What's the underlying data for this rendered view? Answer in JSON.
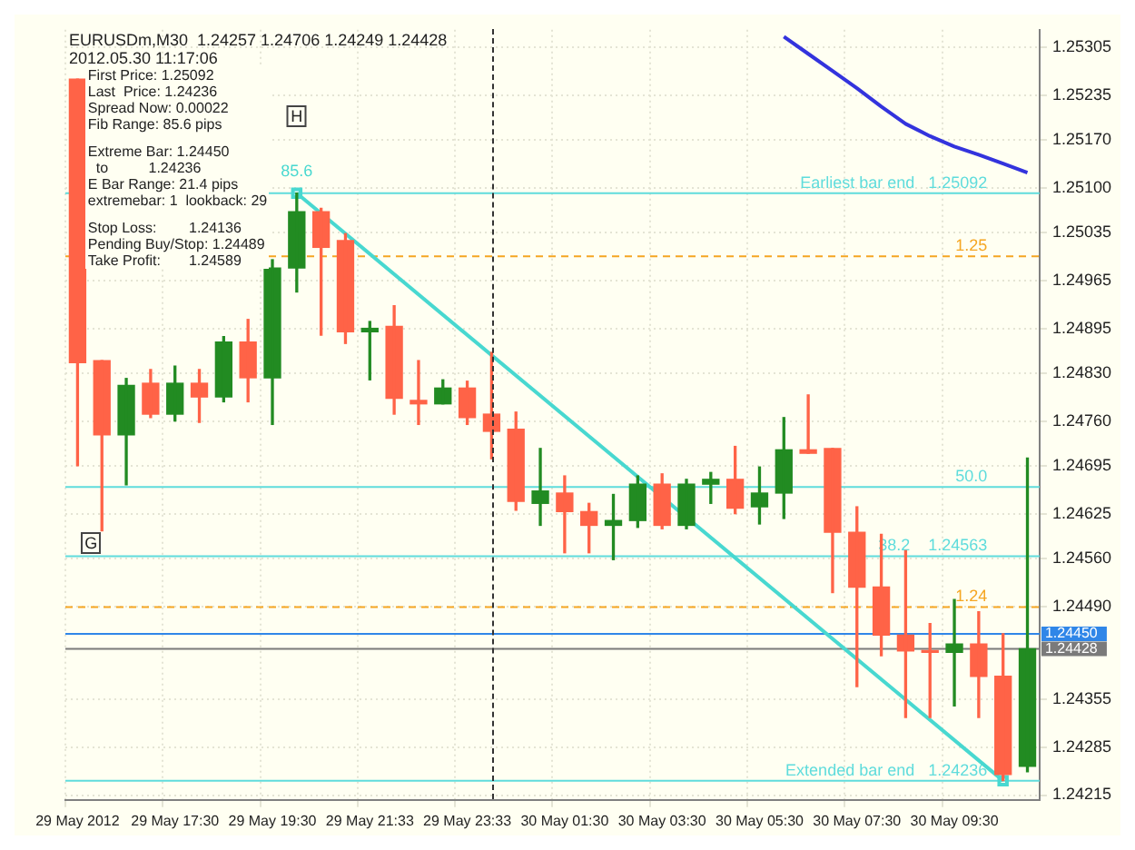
{
  "chart_data": {
    "type": "candlestick",
    "title": "EURUSDm,M30  1.24257 1.24706 1.24249 1.24428",
    "subtitle": "2012.05.30 11:17:06",
    "categories": [
      "29 May 2012",
      null,
      null,
      null,
      "29 May 17:30",
      null,
      null,
      null,
      "29 May 19:30",
      null,
      null,
      null,
      "29 May 21:33",
      null,
      null,
      null,
      "29 May 23:33",
      null,
      null,
      null,
      "30 May 01:30",
      null,
      null,
      null,
      "30 May 03:30",
      null,
      null,
      null,
      "30 May 05:30",
      null,
      null,
      null,
      "30 May 07:30",
      null,
      null,
      null,
      "30 May 09:30",
      null,
      null,
      null
    ],
    "ohlc": [
      [
        1.25258,
        1.25258,
        1.24695,
        1.24845
      ],
      [
        1.24848,
        1.24848,
        1.246,
        1.2474
      ],
      [
        1.2474,
        1.24822,
        1.24667,
        1.24812
      ],
      [
        1.24815,
        1.24835,
        1.24765,
        1.2477
      ],
      [
        1.2477,
        1.2484,
        1.2476,
        1.24815
      ],
      [
        1.24815,
        1.24835,
        1.24758,
        1.24795
      ],
      [
        1.24795,
        1.24883,
        1.24788,
        1.24875
      ],
      [
        1.24875,
        1.24908,
        1.24788,
        1.24823
      ],
      [
        1.24823,
        1.24995,
        1.24755,
        1.24983
      ],
      [
        1.24983,
        1.25092,
        1.24948,
        1.25065
      ],
      [
        1.25065,
        1.2507,
        1.24885,
        1.25013
      ],
      [
        1.25023,
        1.25033,
        1.24873,
        1.2489
      ],
      [
        1.2489,
        1.24905,
        1.2482,
        1.24895
      ],
      [
        1.24898,
        1.24928,
        1.2477,
        1.24793
      ],
      [
        1.2479,
        1.24848,
        1.24755,
        1.24785
      ],
      [
        1.24785,
        1.2482,
        1.24785,
        1.24808
      ],
      [
        1.24808,
        1.24818,
        1.24755,
        1.24765
      ],
      [
        1.2477,
        1.2486,
        1.24705,
        1.24745
      ],
      [
        1.24748,
        1.24773,
        1.2463,
        1.24643
      ],
      [
        1.2464,
        1.2472,
        1.24608,
        1.24658
      ],
      [
        1.24655,
        1.2468,
        1.24568,
        1.24628
      ],
      [
        1.24628,
        1.2464,
        1.24568,
        1.24608
      ],
      [
        1.24608,
        1.24653,
        1.24558,
        1.24615
      ],
      [
        1.24615,
        1.2468,
        1.24605,
        1.24668
      ],
      [
        1.24668,
        1.24683,
        1.24603,
        1.24608
      ],
      [
        1.24608,
        1.24675,
        1.24603,
        1.24668
      ],
      [
        1.24668,
        1.24685,
        1.2464,
        1.24675
      ],
      [
        1.24675,
        1.24723,
        1.24625,
        1.24633
      ],
      [
        1.24635,
        1.24693,
        1.2461,
        1.24655
      ],
      [
        1.24655,
        1.24765,
        1.24618,
        1.24718
      ],
      [
        1.24718,
        1.24798,
        1.24713,
        1.24713
      ],
      [
        1.2472,
        1.2472,
        1.2451,
        1.24598
      ],
      [
        1.24598,
        1.24635,
        1.24373,
        1.24518
      ],
      [
        1.24518,
        1.24595,
        1.24418,
        1.24448
      ],
      [
        1.24448,
        1.24571,
        1.24328,
        1.24425
      ],
      [
        1.24425,
        1.24465,
        1.24328,
        1.24423
      ],
      [
        1.24423,
        1.245,
        1.24345,
        1.24435
      ],
      [
        1.24435,
        1.24482,
        1.24328,
        1.24388
      ],
      [
        1.24388,
        1.2445,
        1.24236,
        1.24245
      ],
      [
        1.24257,
        1.24706,
        1.24249,
        1.24428
      ]
    ],
    "colors": [
      "#ff6347",
      "#ff6347",
      "#228b22",
      "#ff6347",
      "#228b22",
      "#ff6347",
      "#228b22",
      "#ff6347",
      "#228b22",
      "#228b22",
      "#ff6347",
      "#ff6347",
      "#228b22",
      "#ff6347",
      "#ff6347",
      "#228b22",
      "#ff6347",
      "#ff6347",
      "#ff6347",
      "#228b22",
      "#ff6347",
      "#ff6347",
      "#228b22",
      "#228b22",
      "#ff6347",
      "#228b22",
      "#228b22",
      "#ff6347",
      "#228b22",
      "#228b22",
      "#ff6347",
      "#ff6347",
      "#ff6347",
      "#ff6347",
      "#ff6347",
      "#ff6347",
      "#228b22",
      "#ff6347",
      "#ff6347",
      "#228b22"
    ],
    "series": [
      {
        "type": "line",
        "color": "#48d8d0",
        "marker": "square",
        "values": [
          null,
          null,
          null,
          null,
          null,
          null,
          null,
          null,
          null,
          1.25092,
          null,
          null,
          null,
          null,
          null,
          null,
          null,
          null,
          null,
          null,
          null,
          null,
          null,
          null,
          null,
          null,
          null,
          null,
          null,
          null,
          null,
          null,
          null,
          null,
          null,
          null,
          null,
          null,
          1.24236,
          null
        ]
      },
      {
        "type": "line",
        "color": "#3333dd",
        "marker": "none",
        "values": [
          null,
          null,
          null,
          null,
          null,
          null,
          null,
          null,
          null,
          null,
          null,
          null,
          null,
          null,
          null,
          null,
          null,
          null,
          null,
          null,
          null,
          null,
          null,
          null,
          null,
          null,
          null,
          null,
          null,
          1.2532,
          1.25295,
          1.2527,
          1.25245,
          1.25218,
          1.25193,
          1.25175,
          1.2516,
          1.25148,
          1.25135,
          1.25122
        ]
      }
    ],
    "ylim": [
      1.24208,
      1.2533
    ],
    "yticks": [
      1.25305,
      1.25235,
      {
        "value": 1.2517,
        "label": "1.25170"
      },
      {
        "value": 1.251,
        "label": "1.25100"
      },
      1.25035,
      1.24965,
      1.24895,
      {
        "value": 1.2483,
        "label": "1.24830"
      },
      {
        "value": 1.2476,
        "label": "1.24760"
      },
      1.24695,
      1.24625,
      {
        "value": 1.2456,
        "label": "1.24560"
      },
      {
        "value": 1.2449,
        "label": "1.24490"
      },
      1.24355,
      1.24285,
      1.24215
    ],
    "grid": true,
    "legend": false,
    "ref_lines": [
      {
        "axis": "y",
        "value": 1.25092,
        "label": "Earliest bar end   1.25092",
        "color": "#5fdcdc"
      },
      {
        "axis": "y",
        "value": 1.25,
        "label": "1.25",
        "color": "#f5a623",
        "line_style": "dashed"
      },
      {
        "axis": "y",
        "value": 1.24664,
        "color": "#5fdcdc"
      },
      {
        "axis": "y",
        "value": 1.24563,
        "label": "1.24563",
        "color": "#5fdcdc"
      },
      {
        "axis": "y",
        "value": 1.24489,
        "label": "1.24",
        "color": "#f5a623",
        "line_style": "dashed"
      },
      {
        "axis": "y",
        "value": 1.2445,
        "label": "1.24450",
        "color": "#2f86e8"
      },
      {
        "axis": "y",
        "value": 1.24428,
        "label": "1.24428",
        "color": "#7a7a7a"
      },
      {
        "axis": "y",
        "value": 1.24236,
        "label": "Extended bar end   1.24236",
        "color": "#5fdcdc"
      }
    ],
    "annotations": [
      "First Price: 1.25092",
      "Last  Price: 1.24236",
      "Spread Now: 0.00022",
      "Fib Range: 85.6 pips",
      "Extreme Bar: 1.24450",
      "  to          1.24236",
      "E Bar Range: 21.4 pips",
      "extremebar: 1  lookback: 29",
      "Stop Loss:        1.24136",
      "Pending Buy/Stop: 1.24489",
      "Take Profit:       1.24589",
      "85.6",
      "H",
      "G",
      {
        "text": "50.0",
        "y": 1.24664
      },
      {
        "text": "38.2",
        "y": 1.24563
      }
    ]
  }
}
